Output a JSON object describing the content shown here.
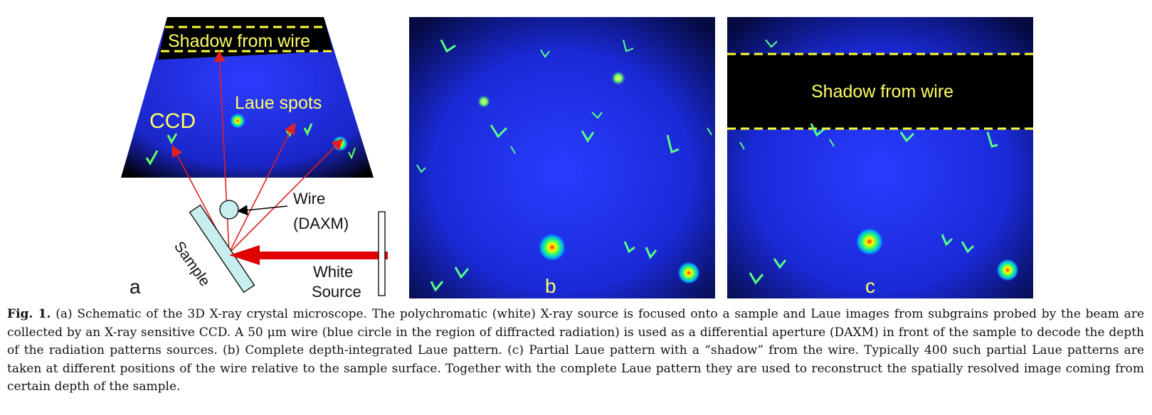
{
  "figure": {
    "panel_a": {
      "letter": "a",
      "shadow_label": "Shadow from wire",
      "ccd_label": "CCD",
      "laue_label": "Laue spots",
      "wire_label_line1": "Wire",
      "wire_label_line2": "(DAXM)",
      "sample_label": "Sample",
      "source_line1": "White",
      "source_line2": "Source"
    },
    "panel_b": {
      "letter": "b"
    },
    "panel_c": {
      "letter": "c",
      "shadow_label": "Shadow from wire"
    },
    "colors": {
      "detector_blue": "#1b2fe0",
      "shadow_dash": "#ffff33",
      "label_yellow": "#ffff66",
      "ray_red": "#e02020",
      "beam_red": "#e00000",
      "sample_fill": "#c8eef0"
    }
  },
  "caption": {
    "label": "Fig. 1.",
    "text": " (a) Schematic of the 3D X-ray crystal microscope. The polychromatic (white) X-ray source is focused onto a sample and Laue images from subgrains probed by the beam are collected by an X-ray sensitive CCD. A 50 μm wire (blue circle in the region of diffracted radiation) is used as a differential aperture (DAXM) in front of the sample to decode the depth of the radiation patterns sources. (b) Complete depth-integrated Laue pattern. (c) Partial Laue pattern with a “shadow” from the wire. Typically 400 such partial Laue patterns are taken at different positions of the wire relative to the sample surface. Together with the complete Laue pattern they are used to reconstruct the spatially resolved image coming from certain depth of the sample."
  }
}
